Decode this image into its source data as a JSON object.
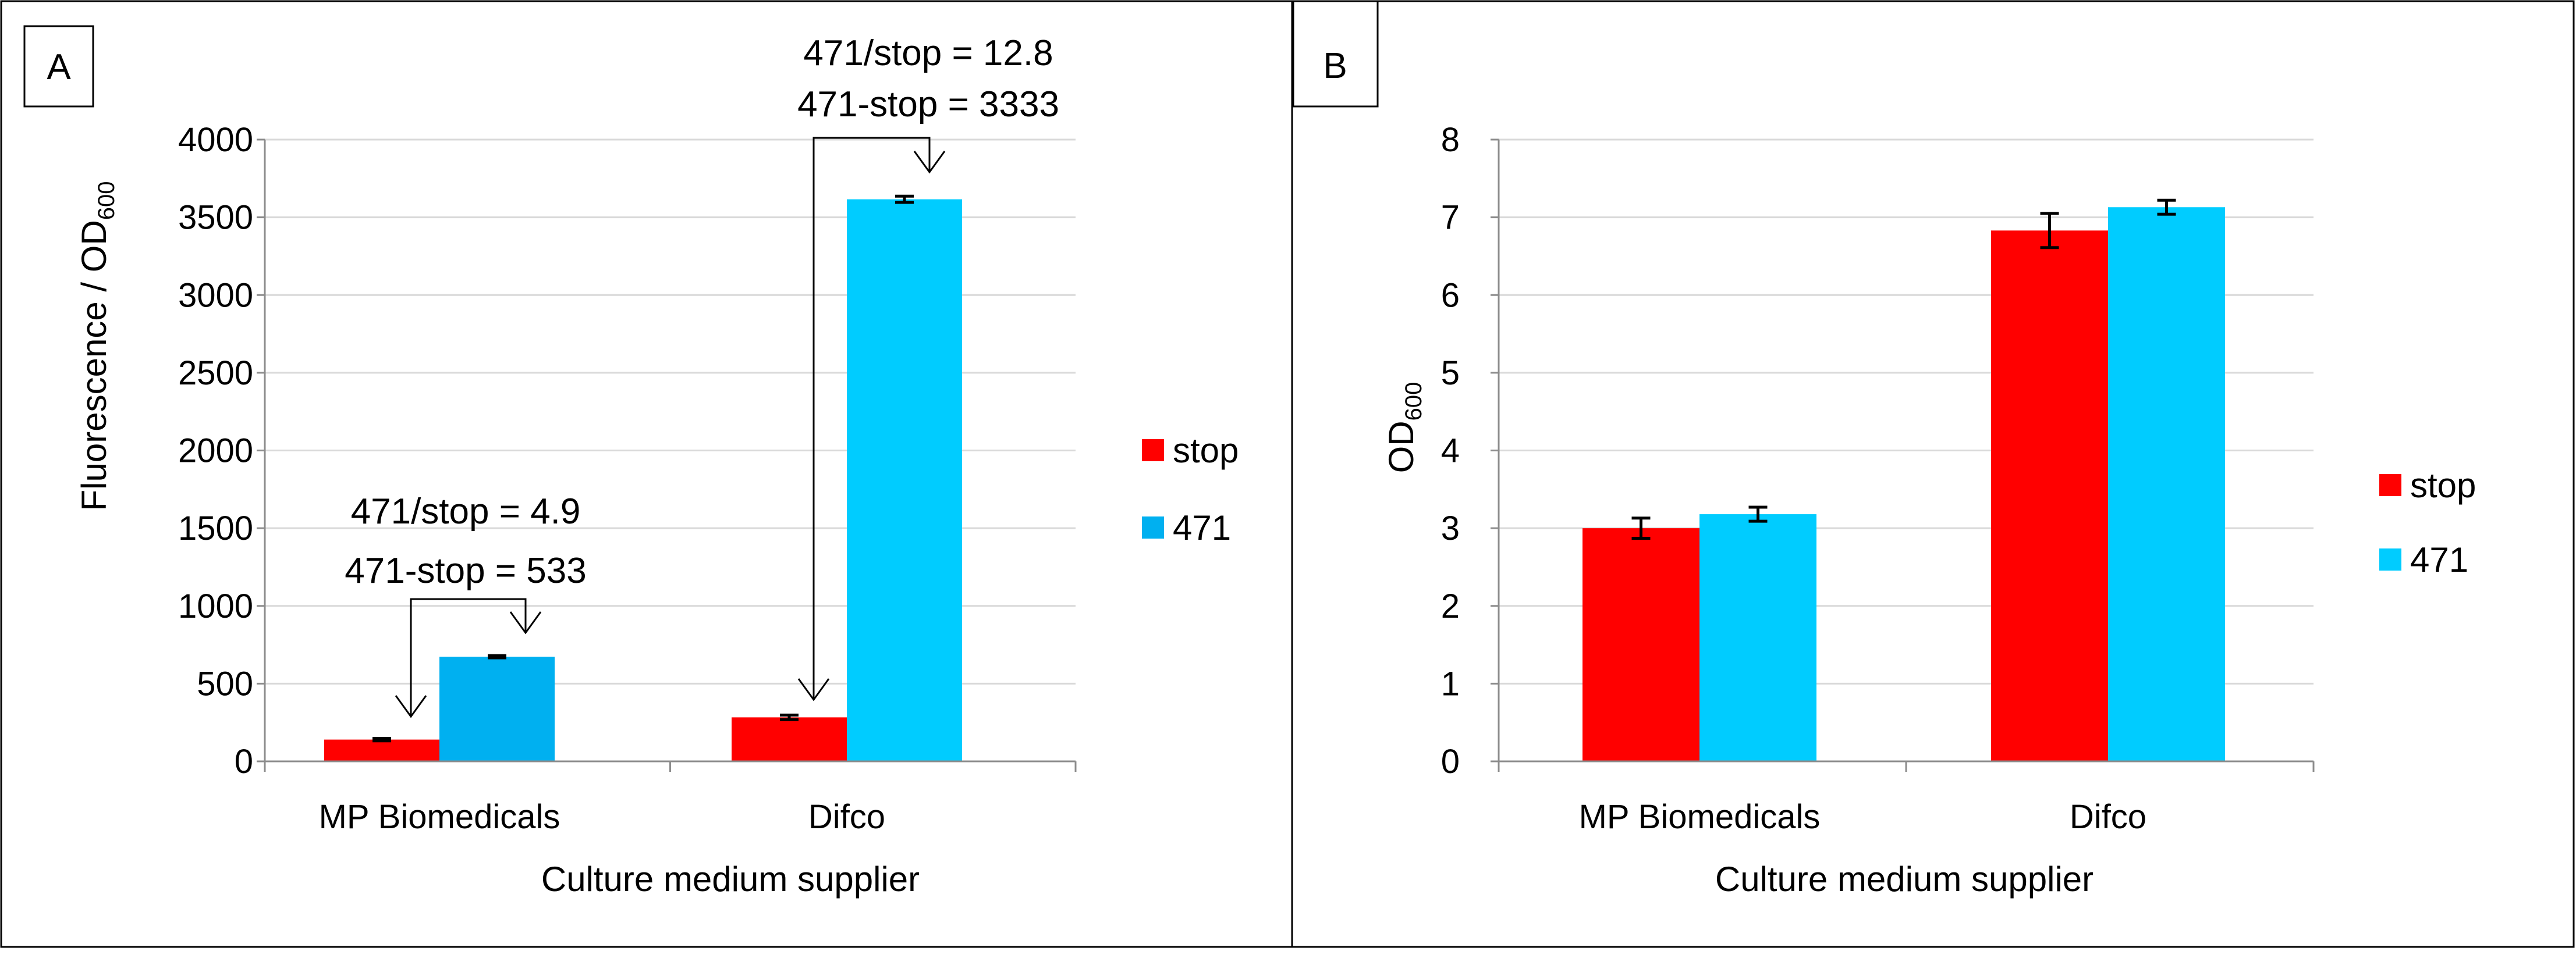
{
  "colors": {
    "stop": "#ff0000",
    "471": "#00ccff",
    "471_mp": "#00b0f0",
    "background": "#ffffff"
  },
  "chart_data": [
    {
      "type": "bar",
      "panel": "A",
      "categories": [
        "MP Biomedicals",
        "Difco"
      ],
      "series": [
        {
          "name": "stop",
          "values": [
            140,
            283
          ],
          "errors": [
            8,
            15
          ]
        },
        {
          "name": "471",
          "values": [
            673,
            3616
          ],
          "errors": [
            7,
            20
          ]
        }
      ],
      "xlabel": "Culture medium supplier",
      "ylabel": {
        "main": "Fluorescence / OD",
        "sub": "600"
      },
      "ylim": [
        0,
        4000
      ],
      "yticks": [
        "0",
        "500",
        "1000",
        "1500",
        "2000",
        "2500",
        "3000",
        "3500",
        "4000"
      ],
      "grid": true,
      "legend": [
        "stop",
        "471"
      ],
      "legend_position": "right",
      "annotations": [
        {
          "lines": [
            "471/stop = 4.9",
            "471-stop = 533"
          ],
          "category": "MP Biomedicals"
        },
        {
          "lines": [
            "471/stop = 12.8",
            "471-stop = 3333"
          ],
          "category": "Difco"
        }
      ]
    },
    {
      "type": "bar",
      "panel": "B",
      "categories": [
        "MP Biomedicals",
        "Difco"
      ],
      "series": [
        {
          "name": "stop",
          "values": [
            3.0,
            6.83
          ],
          "errors": [
            0.13,
            0.22
          ]
        },
        {
          "name": "471",
          "values": [
            3.18,
            7.13
          ],
          "errors": [
            0.09,
            0.09
          ]
        }
      ],
      "xlabel": "Culture medium supplier",
      "ylabel": {
        "main": "OD",
        "sub": "600"
      },
      "ylim": [
        0,
        8
      ],
      "yticks": [
        "0",
        "1",
        "2",
        "3",
        "4",
        "5",
        "6",
        "7",
        "8"
      ],
      "grid": true,
      "legend": [
        "stop",
        "471"
      ],
      "legend_position": "right"
    }
  ]
}
